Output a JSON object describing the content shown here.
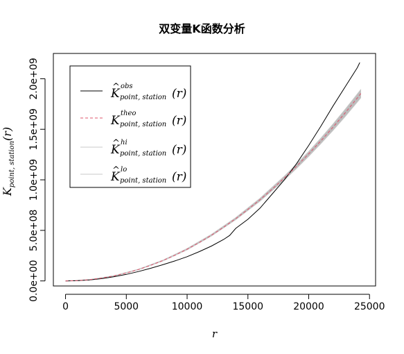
{
  "chart_data": {
    "type": "line",
    "title": "双变量K函数分析",
    "xlabel": "r",
    "ylabel": {
      "main": "K",
      "sub": "point, station",
      "arg": "(r)"
    },
    "xlim": [
      -1000,
      25500
    ],
    "ylim": [
      -50000000,
      2250000000
    ],
    "x_ticks": [
      0,
      5000,
      10000,
      15000,
      20000,
      25000
    ],
    "x_tick_labels": [
      "0",
      "5000",
      "10000",
      "15000",
      "20000",
      "25000"
    ],
    "y_ticks": [
      0,
      500000000,
      1000000000,
      1500000000,
      2000000000
    ],
    "y_tick_labels": [
      "0.0e+00",
      "5.0e+08",
      "1.0e+09",
      "1.5e+09",
      "2.0e+09"
    ],
    "grid": false,
    "legend_position": "top-left",
    "colors": {
      "obs": "#000000",
      "theo": "#DF536B",
      "envelope_line": "#c8c8c8",
      "envelope_fill": "#bdbdbd"
    },
    "series": [
      {
        "name": "obs",
        "legend": {
          "base": "K",
          "hat": true,
          "sup": "obs",
          "sub": "point, station",
          "arg": "(r)"
        },
        "style": "solid",
        "x": [
          0,
          1000,
          2000,
          3000,
          4000,
          5000,
          6000,
          7000,
          8000,
          9000,
          10000,
          11000,
          12000,
          13000,
          13500,
          14000,
          15000,
          16000,
          17000,
          18000,
          19000,
          20000,
          21000,
          22000,
          23000,
          24000,
          24200
        ],
        "y": [
          0,
          2500000,
          10000000,
          23000000,
          42000000,
          65000000,
          93000000,
          125000000,
          160000000,
          198000000,
          240000000,
          290000000,
          345000000,
          410000000,
          450000000,
          520000000,
          610000000,
          720000000,
          860000000,
          1000000000,
          1160000000,
          1340000000,
          1530000000,
          1730000000,
          1920000000,
          2110000000,
          2160000000
        ]
      },
      {
        "name": "theo",
        "legend": {
          "base": "K",
          "hat": false,
          "sup": "theo",
          "sub": "point, station",
          "arg": "(r)"
        },
        "style": "dashed",
        "x": [
          0,
          1000,
          2000,
          3000,
          4000,
          5000,
          6000,
          7000,
          8000,
          9000,
          10000,
          11000,
          12000,
          13000,
          14000,
          15000,
          16000,
          17000,
          18000,
          19000,
          20000,
          21000,
          22000,
          23000,
          24000,
          24300
        ],
        "y": [
          0,
          3100000,
          12600000,
          28300000,
          50300000,
          78500000,
          113000000,
          154000000,
          201000000,
          254000000,
          314000000,
          380000000,
          452000000,
          531000000,
          616000000,
          707000000,
          804000000,
          908000000,
          1018000000,
          1134000000,
          1257000000,
          1385000000,
          1521000000,
          1662000000,
          1810000000,
          1855000000
        ]
      },
      {
        "name": "hi",
        "legend": {
          "base": "K",
          "hat": true,
          "sup": "hi",
          "sub": "point, station",
          "arg": "(r)"
        },
        "style": "solid",
        "x": [
          0,
          2000,
          4000,
          6000,
          8000,
          10000,
          12000,
          14000,
          16000,
          18000,
          19000,
          20000,
          21000,
          22000,
          23000,
          24000,
          24300
        ],
        "y": [
          0,
          13000000,
          52000000,
          116000000,
          205000000,
          320000000,
          460000000,
          626000000,
          818000000,
          1037000000,
          1155000000,
          1280000000,
          1412000000,
          1552000000,
          1697000000,
          1850000000,
          1895000000
        ]
      },
      {
        "name": "lo",
        "legend": {
          "base": "K",
          "hat": true,
          "sup": "lo",
          "sub": "point, station",
          "arg": "(r)"
        },
        "style": "solid",
        "x": [
          0,
          2000,
          4000,
          6000,
          8000,
          10000,
          12000,
          14000,
          16000,
          18000,
          19000,
          20000,
          21000,
          22000,
          23000,
          24000,
          24300
        ],
        "y": [
          0,
          12200000,
          48800000,
          110000000,
          197000000,
          308000000,
          444000000,
          606000000,
          790000000,
          999000000,
          1113000000,
          1233000000,
          1358000000,
          1489000000,
          1626000000,
          1770000000,
          1814000000
        ]
      }
    ]
  }
}
